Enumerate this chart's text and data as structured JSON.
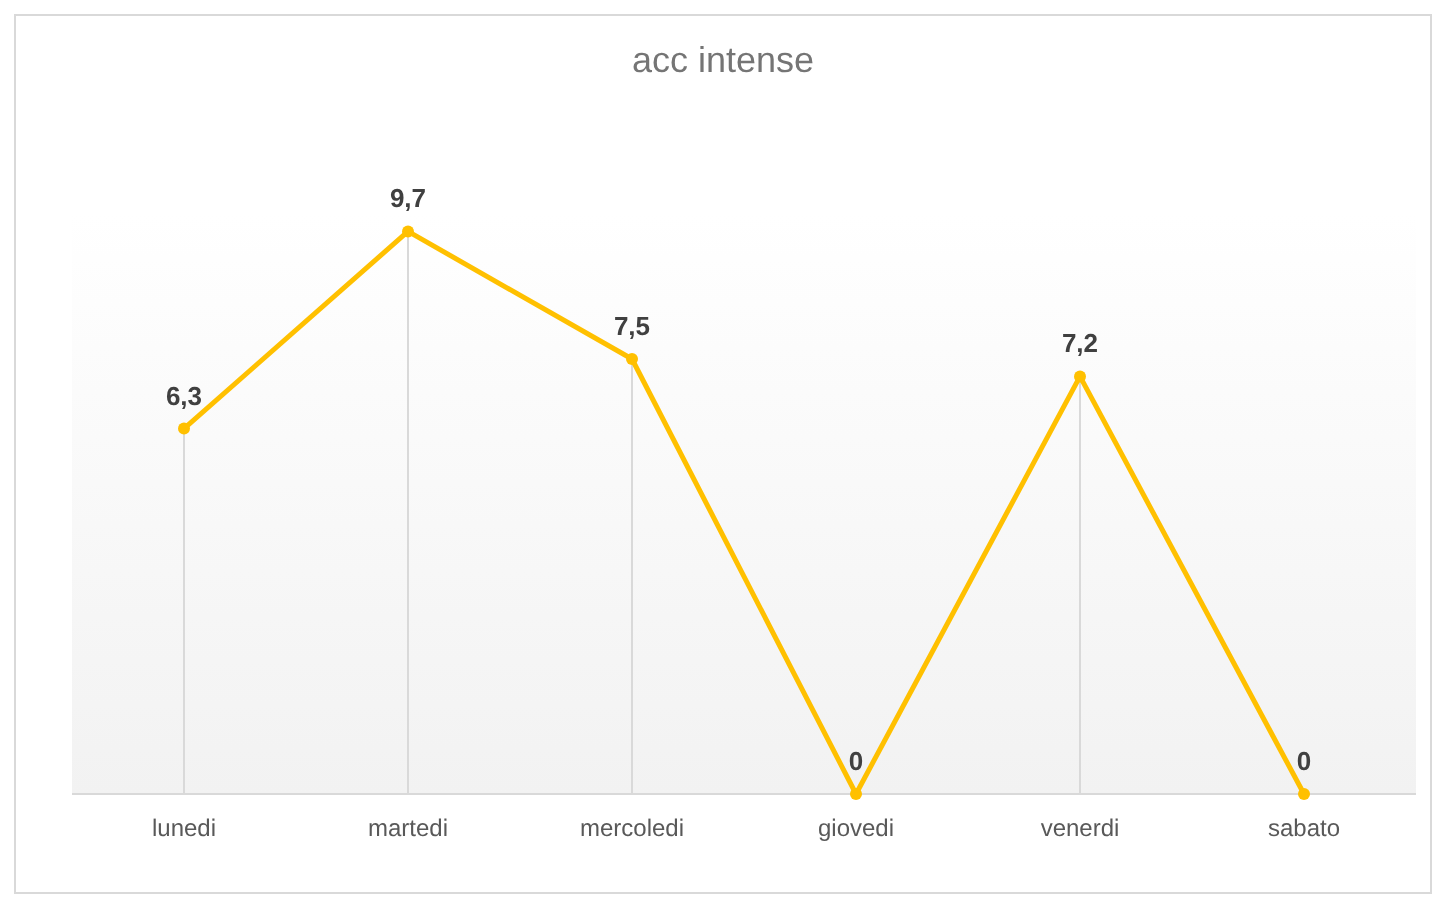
{
  "chart_data": {
    "type": "line",
    "title": "acc intense",
    "categories": [
      "lunedi",
      "martedi",
      "mercoledi",
      "giovedi",
      "venerdi",
      "sabato"
    ],
    "series": [
      {
        "color": "#ffc000",
        "values": [
          6.3,
          9.7,
          7.5,
          0,
          7.2,
          0
        ],
        "value_labels": [
          "6,3",
          "9,7",
          "7,5",
          "0",
          "7,2",
          "0"
        ]
      }
    ],
    "ylim": [
      0,
      10
    ],
    "tick_labels": "x",
    "marker": "circle",
    "line_style": "solid",
    "grid": "x"
  }
}
